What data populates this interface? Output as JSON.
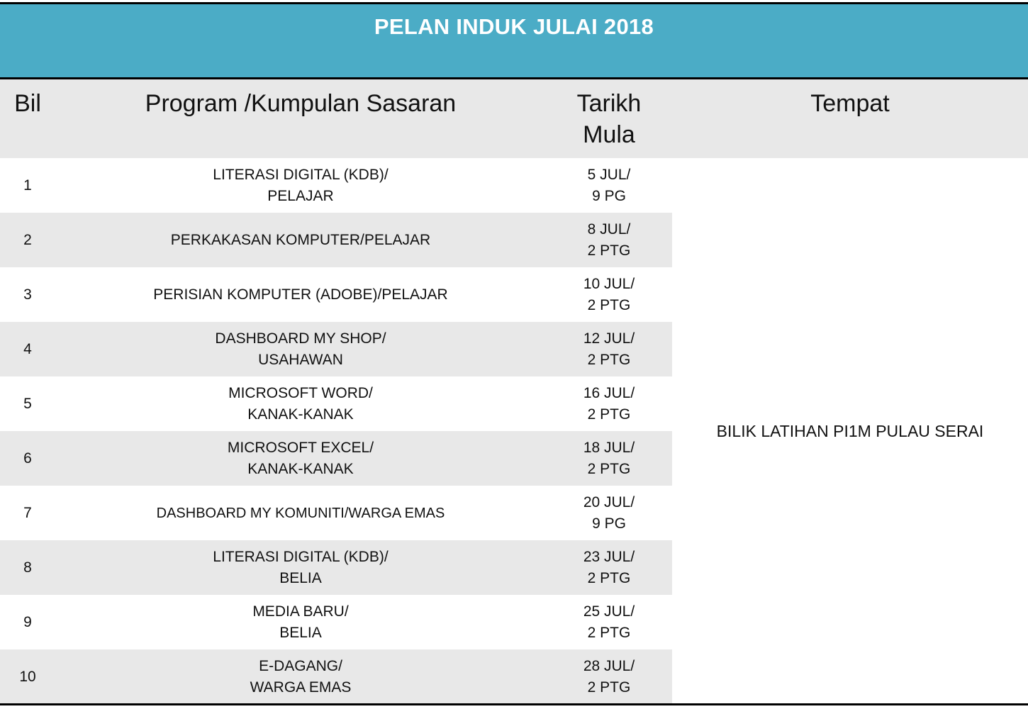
{
  "title": "PELAN INDUK JULAI 2018",
  "headers": {
    "bil": "Bil",
    "program": "Program /Kumpulan Sasaran",
    "tarikh_line1": "Tarikh",
    "tarikh_line2": "Mula",
    "tempat": "Tempat"
  },
  "rows": [
    {
      "bil": "1",
      "program": "LITERASI DIGITAL (KDB)/\nPELAJAR",
      "date": "5 JUL/\n9 PG"
    },
    {
      "bil": "2",
      "program": "PERKAKASAN KOMPUTER/PELAJAR",
      "date": "8 JUL/\n2 PTG"
    },
    {
      "bil": "3",
      "program": "PERISIAN KOMPUTER (ADOBE)/PELAJAR",
      "date": "10 JUL/\n2 PTG"
    },
    {
      "bil": "4",
      "program": "DASHBOARD MY SHOP/\nUSAHAWAN",
      "date": "12 JUL/\n2 PTG"
    },
    {
      "bil": "5",
      "program": "MICROSOFT WORD/\nKANAK-KANAK",
      "date": "16 JUL/\n2 PTG"
    },
    {
      "bil": "6",
      "program": "MICROSOFT EXCEL/\nKANAK-KANAK",
      "date": "18 JUL/\n2 PTG"
    },
    {
      "bil": "7",
      "program": "DASHBOARD MY KOMUNITI/WARGA EMAS",
      "date": "20 JUL/\n9 PG"
    },
    {
      "bil": "8",
      "program": "LITERASI DIGITAL (KDB)/\nBELIA",
      "date": "23 JUL/\n2 PTG"
    },
    {
      "bil": "9",
      "program": "MEDIA BARU/\nBELIA",
      "date": "25 JUL/\n2 PTG"
    },
    {
      "bil": "10",
      "program": "E-DAGANG/\nWARGA EMAS",
      "date": "28 JUL/\n2 PTG"
    }
  ],
  "venue": "BILIK LATIHAN PI1M PULAU SERAI",
  "colors": {
    "banner": "#4bacc6",
    "stripe": "#e8e8e8"
  }
}
